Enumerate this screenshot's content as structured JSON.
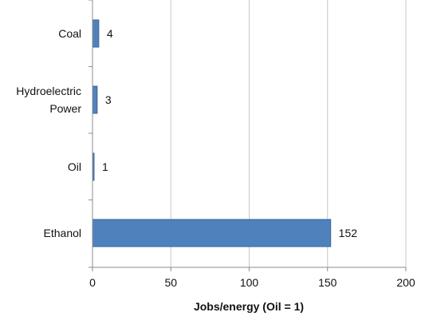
{
  "chart_data": {
    "type": "bar",
    "orientation": "horizontal",
    "categories": [
      "Coal",
      "Hydroelectric Power",
      "Oil",
      "Ethanol"
    ],
    "category_lines": [
      [
        "Coal"
      ],
      [
        "Hydroelectric",
        "Power"
      ],
      [
        "Oil"
      ],
      [
        "Ethanol"
      ]
    ],
    "values": [
      4,
      3,
      1,
      152
    ],
    "data_labels": [
      "4",
      "3",
      "1",
      "152"
    ],
    "xlabel": "Jobs/energy (Oil = 1)",
    "ylabel": "",
    "xlim": [
      0,
      200
    ],
    "xticks": [
      0,
      50,
      100,
      150,
      200
    ],
    "xtick_labels": [
      "0",
      "50",
      "100",
      "150",
      "200"
    ],
    "grid": "vertical",
    "legend": "none",
    "colors": {
      "bar": "#4f81bd",
      "bar_edge": "#3a659c",
      "grid": "#c8c8c8",
      "axis": "#8c8c8c"
    }
  }
}
